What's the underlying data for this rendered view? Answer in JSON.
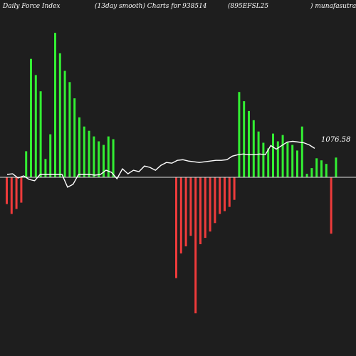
{
  "header": {
    "title_left": "Daily Force  Index",
    "title_mid": "(13day smooth) Charts for 938514",
    "symbol": "(895EFSL25",
    "site": ") munafasutra.in"
  },
  "chart_data": {
    "type": "bar",
    "title": "Daily Force Index (13day smooth) Charts for 938514",
    "last_value_label": "1076.58",
    "colors": {
      "positive": "#33ee33",
      "negative": "#ee3b3b",
      "line": "#ffffff",
      "zero_line": "#e0e0e0",
      "background": "#1e1e1e"
    },
    "ylim": [
      -195,
      205
    ],
    "values": [
      -38,
      -52,
      -45,
      -36,
      37,
      168,
      145,
      122,
      26,
      61,
      205,
      176,
      151,
      135,
      112,
      85,
      72,
      66,
      58,
      51,
      46,
      58,
      54,
      0,
      0,
      0,
      0,
      0,
      0,
      0,
      0,
      0,
      0,
      0,
      0,
      -143,
      -108,
      -98,
      -83,
      -193,
      -95,
      -86,
      -77,
      -65,
      -52,
      -48,
      -42,
      -32,
      121,
      108,
      94,
      81,
      65,
      49,
      41,
      62,
      51,
      60,
      50,
      46,
      38,
      72,
      5,
      13,
      27,
      24,
      19,
      -80,
      28
    ],
    "smooth_line": [
      4,
      5,
      -1,
      2,
      -3,
      -5,
      4,
      4,
      4,
      4,
      4,
      -14,
      -10,
      4,
      4,
      4,
      3,
      4,
      10,
      7,
      -2,
      12,
      5,
      10,
      8,
      16,
      14,
      10,
      17,
      21,
      20,
      24,
      25,
      23,
      22,
      21,
      22,
      23,
      24,
      24,
      25,
      30,
      32,
      33,
      32,
      32,
      33,
      32,
      45,
      40,
      45,
      50,
      51,
      50,
      49,
      46,
      41
    ]
  }
}
